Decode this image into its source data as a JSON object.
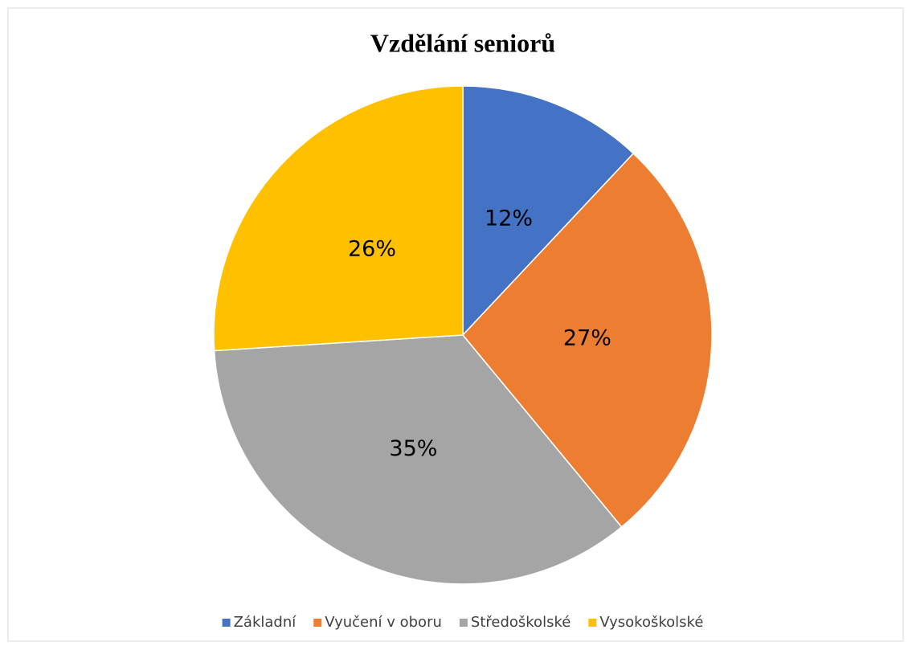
{
  "chart_data": {
    "type": "pie",
    "title": "Vzdělání seniorů",
    "categories": [
      "Základní",
      "Vyučení v oboru",
      "Středoškolské",
      "Vysokoškolské"
    ],
    "values": [
      12,
      27,
      35,
      26
    ],
    "value_labels": [
      "12%",
      "27%",
      "35%",
      "26%"
    ],
    "colors": [
      "#4472c4",
      "#ed7d31",
      "#a5a5a5",
      "#ffc000"
    ],
    "legend": "bottom"
  }
}
